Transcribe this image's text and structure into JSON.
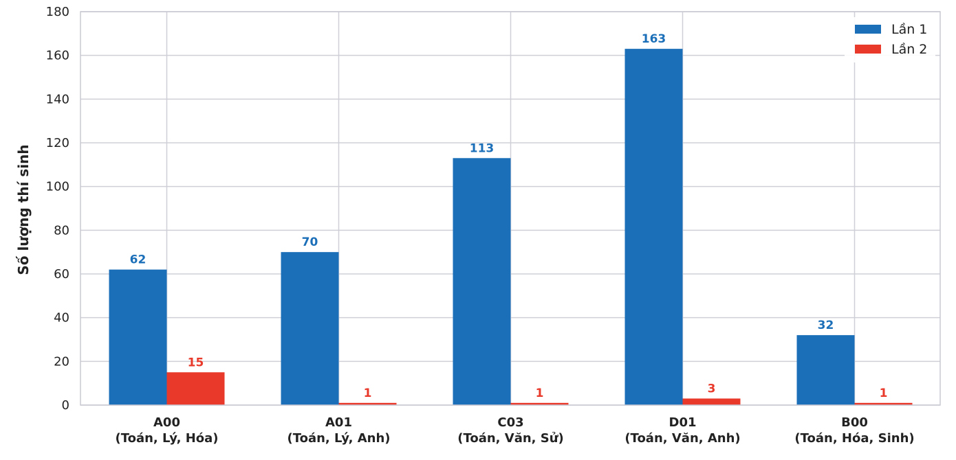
{
  "chart_data": {
    "type": "bar",
    "categories": [
      [
        "A00",
        "(Toán, Lý, Hóa)"
      ],
      [
        "A01",
        "(Toán, Lý, Anh)"
      ],
      [
        "C03",
        "(Toán, Văn, Sử)"
      ],
      [
        "D01",
        "(Toán, Văn, Anh)"
      ],
      [
        "B00",
        "(Toán, Hóa, Sinh)"
      ]
    ],
    "series": [
      {
        "name": "Lần 1",
        "color": "#1b6fb8",
        "values": [
          62,
          70,
          113,
          163,
          32
        ]
      },
      {
        "name": "Lần 2",
        "color": "#e8392a",
        "values": [
          15,
          1,
          1,
          3,
          1
        ]
      }
    ],
    "ylabel": "Số lượng thí sinh",
    "ylim": [
      0,
      180
    ],
    "yticks": [
      0,
      20,
      40,
      60,
      80,
      100,
      120,
      140,
      160,
      180
    ],
    "grid": true,
    "legend": "top-right",
    "data_labels": true
  }
}
